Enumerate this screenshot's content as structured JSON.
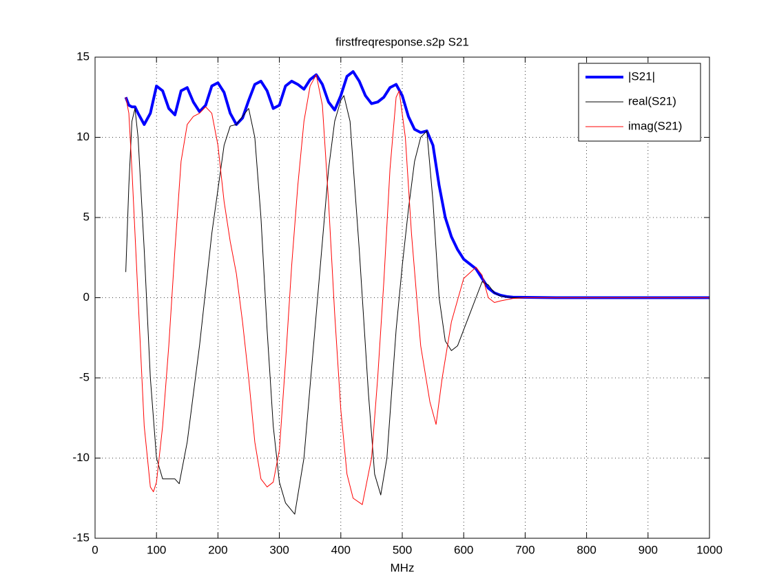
{
  "chart_data": {
    "type": "line",
    "title": "firstfreqresponse.s2p S21",
    "xlabel": "MHz",
    "xlim": [
      0,
      1000
    ],
    "xticks": [
      0,
      100,
      200,
      300,
      400,
      500,
      600,
      700,
      800,
      900,
      1000
    ],
    "ylim": [
      -15,
      15
    ],
    "yticks": [
      -15,
      -10,
      -5,
      0,
      5,
      10,
      15
    ],
    "grid": true,
    "legend": "upper-right",
    "series": [
      {
        "name": "|S21|",
        "color": "#0000ff",
        "width": 4,
        "x": [
          50,
          55,
          60,
          65,
          70,
          80,
          90,
          100,
          110,
          120,
          130,
          140,
          150,
          160,
          170,
          180,
          190,
          200,
          210,
          220,
          230,
          240,
          250,
          260,
          270,
          280,
          290,
          300,
          310,
          320,
          330,
          340,
          350,
          360,
          370,
          380,
          390,
          400,
          410,
          420,
          430,
          440,
          450,
          460,
          470,
          480,
          490,
          500,
          510,
          520,
          530,
          540,
          550,
          560,
          570,
          580,
          590,
          600,
          610,
          620,
          630,
          640,
          650,
          660,
          670,
          680,
          700,
          750,
          800,
          900,
          1000
        ],
        "values": [
          12.5,
          12.0,
          11.9,
          11.9,
          11.5,
          10.8,
          11.5,
          13.2,
          12.9,
          11.8,
          11.4,
          12.9,
          13.1,
          12.2,
          11.6,
          12.0,
          13.2,
          13.4,
          12.8,
          11.5,
          10.8,
          11.2,
          12.3,
          13.3,
          13.5,
          12.9,
          11.8,
          12.0,
          13.2,
          13.5,
          13.3,
          13.0,
          13.6,
          13.9,
          13.3,
          12.2,
          11.7,
          12.6,
          13.8,
          14.1,
          13.5,
          12.6,
          12.1,
          12.2,
          12.5,
          13.1,
          13.3,
          12.6,
          11.3,
          10.5,
          10.3,
          10.4,
          9.5,
          7.0,
          5.0,
          3.8,
          3.0,
          2.4,
          2.1,
          1.8,
          1.2,
          0.6,
          0.3,
          0.15,
          0.07,
          0.03,
          0.02,
          0,
          0,
          0,
          0
        ]
      },
      {
        "name": "real(S21)",
        "color": "#000000",
        "width": 1,
        "x": [
          50,
          55,
          60,
          65,
          70,
          80,
          90,
          100,
          110,
          120,
          130,
          137,
          150,
          170,
          190,
          210,
          220,
          230,
          240,
          250,
          260,
          270,
          280,
          290,
          300,
          310,
          325,
          340,
          360,
          380,
          390,
          400,
          405,
          415,
          430,
          445,
          455,
          465,
          475,
          490,
          500,
          510,
          520,
          530,
          540,
          550,
          560,
          570,
          580,
          590,
          600,
          610,
          620,
          630,
          640,
          650,
          660,
          680,
          700,
          1000
        ],
        "values": [
          1.6,
          7,
          11,
          11.8,
          10,
          3,
          -5,
          -10,
          -11.3,
          -11.3,
          -11.3,
          -11.6,
          -9,
          -3,
          4,
          9.5,
          10.7,
          10.8,
          11.3,
          11.8,
          10,
          5,
          -2,
          -8,
          -11.5,
          -12.8,
          -13.5,
          -10,
          -1,
          8,
          11,
          12.3,
          12.6,
          11,
          3,
          -6,
          -11,
          -12.3,
          -10,
          -2,
          2,
          5.5,
          8.5,
          10,
          10.4,
          6,
          0,
          -2.7,
          -3.3,
          -3,
          -2,
          -1,
          0,
          1.0,
          0.8,
          0.3,
          0.1,
          0,
          0,
          0
        ]
      },
      {
        "name": "imag(S21)",
        "color": "#ff0000",
        "width": 1,
        "x": [
          50,
          55,
          60,
          70,
          80,
          90,
          95,
          100,
          110,
          120,
          130,
          140,
          150,
          160,
          170,
          180,
          190,
          200,
          210,
          220,
          230,
          240,
          250,
          260,
          270,
          280,
          290,
          300,
          310,
          320,
          330,
          340,
          350,
          360,
          370,
          380,
          390,
          400,
          410,
          420,
          435,
          450,
          460,
          470,
          480,
          490,
          495,
          505,
          515,
          530,
          545,
          555,
          565,
          580,
          600,
          620,
          630,
          640,
          650,
          660,
          680,
          700,
          1000
        ],
        "values": [
          12.5,
          11.5,
          8,
          0,
          -8,
          -11.8,
          -12.1,
          -11.5,
          -8,
          -3,
          3,
          8.5,
          10.8,
          11.3,
          11.5,
          11.9,
          11.5,
          9.5,
          6.0,
          3.5,
          1.5,
          -1.5,
          -5,
          -9,
          -11.3,
          -11.8,
          -11.5,
          -9.5,
          -4,
          2,
          7,
          11,
          13.2,
          13.9,
          12,
          6,
          -1,
          -7,
          -11,
          -12.5,
          -12.9,
          -10,
          -5,
          1,
          8,
          12.5,
          12.9,
          10,
          4,
          -3,
          -6.5,
          -7.9,
          -5,
          -1.5,
          1.2,
          1.9,
          1.4,
          0,
          -0.3,
          -0.2,
          -0.05,
          0,
          0
        ]
      }
    ]
  }
}
